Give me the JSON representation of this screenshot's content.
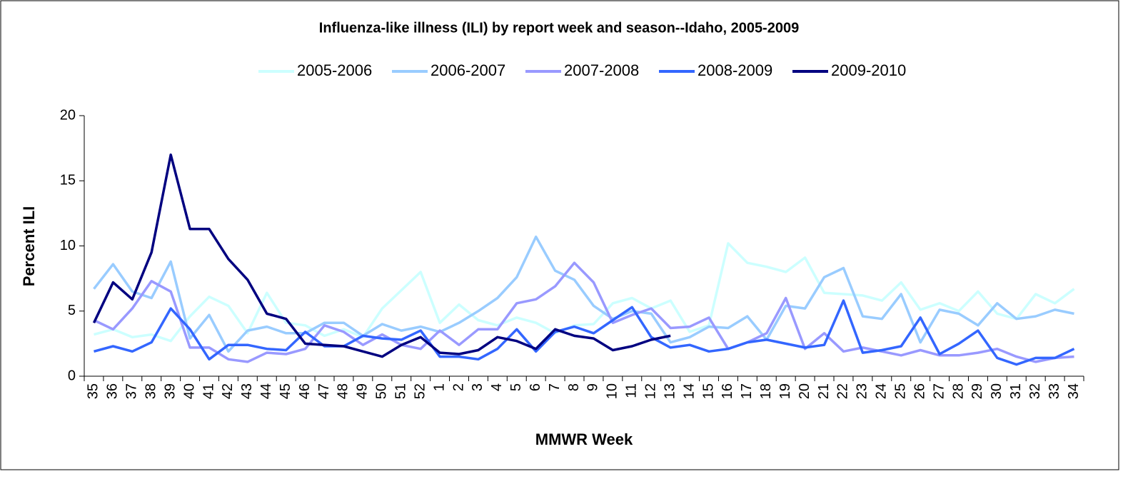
{
  "chart_data": {
    "type": "line",
    "title": "Influenza-like illness (ILI) by report week and season--Idaho, 2005-2009",
    "x_label": "MMWR Week",
    "y_label": "Percent ILI",
    "categories": [
      "35",
      "36",
      "37",
      "38",
      "39",
      "40",
      "41",
      "42",
      "43",
      "44",
      "45",
      "46",
      "47",
      "48",
      "49",
      "50",
      "51",
      "52",
      "1",
      "2",
      "3",
      "4",
      "5",
      "6",
      "7",
      "8",
      "9",
      "10",
      "11",
      "12",
      "13",
      "14",
      "15",
      "16",
      "17",
      "18",
      "19",
      "20",
      "21",
      "22",
      "23",
      "24",
      "25",
      "26",
      "27",
      "28",
      "29",
      "30",
      "31",
      "32",
      "33",
      "34"
    ],
    "ylim": [
      0,
      20
    ],
    "yticks": [
      0,
      5,
      10,
      15,
      20
    ],
    "grid": false,
    "legend": "top",
    "series": [
      {
        "name": "2005-2006",
        "color": "#ccffff",
        "values": [
          3.2,
          3.6,
          3.0,
          3.2,
          2.7,
          4.6,
          6.1,
          5.4,
          3.3,
          6.4,
          4.1,
          3.9,
          3.1,
          3.6,
          3.0,
          5.2,
          6.6,
          8.0,
          4.1,
          5.5,
          4.3,
          3.9,
          4.5,
          4.1,
          3.3,
          3.9,
          4.0,
          5.6,
          6.0,
          5.2,
          5.8,
          3.4,
          3.9,
          10.2,
          8.7,
          8.4,
          8.0,
          9.1,
          6.4,
          6.3,
          6.2,
          5.8,
          7.2,
          5.1,
          5.6,
          5.0,
          6.5,
          4.8,
          4.4,
          6.3,
          5.6,
          6.7
        ]
      },
      {
        "name": "2006-2007",
        "color": "#99ccff",
        "values": [
          6.7,
          8.6,
          6.5,
          6.0,
          8.8,
          2.9,
          4.7,
          1.9,
          3.5,
          3.8,
          3.3,
          3.3,
          4.1,
          4.1,
          3.1,
          4.0,
          3.5,
          3.8,
          3.4,
          4.1,
          5.0,
          6.0,
          7.6,
          10.7,
          8.1,
          7.4,
          5.4,
          4.4,
          5.0,
          4.8,
          2.6,
          3.0,
          3.8,
          3.7,
          4.6,
          2.8,
          5.4,
          5.2,
          7.6,
          8.3,
          4.6,
          4.4,
          6.3,
          2.6,
          5.1,
          4.8,
          3.9,
          5.6,
          4.4,
          4.6,
          5.1,
          4.8
        ]
      },
      {
        "name": "2007-2008",
        "color": "#9999ff",
        "values": [
          4.3,
          3.6,
          5.2,
          7.3,
          6.5,
          2.2,
          2.2,
          1.3,
          1.1,
          1.8,
          1.7,
          2.1,
          3.9,
          3.4,
          2.4,
          3.2,
          2.4,
          2.1,
          3.5,
          2.4,
          3.6,
          3.6,
          5.6,
          5.9,
          6.9,
          8.7,
          7.2,
          4.1,
          4.7,
          5.2,
          3.7,
          3.8,
          4.5,
          2.1,
          2.6,
          3.3,
          6.0,
          2.1,
          3.3,
          1.9,
          2.2,
          1.9,
          1.6,
          2.0,
          1.6,
          1.6,
          1.8,
          2.1,
          1.5,
          1.1,
          1.4,
          1.5
        ]
      },
      {
        "name": "2008-2009",
        "color": "#3366ff",
        "values": [
          1.9,
          2.3,
          1.9,
          2.6,
          5.2,
          3.6,
          1.3,
          2.4,
          2.4,
          2.1,
          2.0,
          3.4,
          2.3,
          2.3,
          3.1,
          2.9,
          2.8,
          3.5,
          1.5,
          1.5,
          1.3,
          2.1,
          3.6,
          1.9,
          3.4,
          3.8,
          3.3,
          4.3,
          5.3,
          3.0,
          2.2,
          2.4,
          1.9,
          2.1,
          2.6,
          2.8,
          2.5,
          2.2,
          2.4,
          5.8,
          1.8,
          2.0,
          2.3,
          4.5,
          1.7,
          2.5,
          3.5,
          1.4,
          0.9,
          1.4,
          1.4,
          2.1
        ]
      },
      {
        "name": "2009-2010",
        "color": "#000080",
        "values": [
          4.1,
          7.2,
          5.9,
          9.5,
          17.0,
          11.3,
          11.3,
          9.0,
          7.4,
          4.8,
          4.4,
          2.5,
          2.4,
          2.3,
          1.9,
          1.5,
          2.4,
          3.0,
          1.8,
          1.7,
          2.0,
          3.0,
          2.7,
          2.1,
          3.6,
          3.1,
          2.9,
          2.0,
          2.3,
          2.8,
          3.1,
          null,
          null,
          null,
          null,
          null,
          null,
          null,
          null,
          null,
          null,
          null,
          null,
          null,
          null,
          null,
          null,
          null,
          null,
          null,
          null,
          null
        ]
      }
    ]
  }
}
